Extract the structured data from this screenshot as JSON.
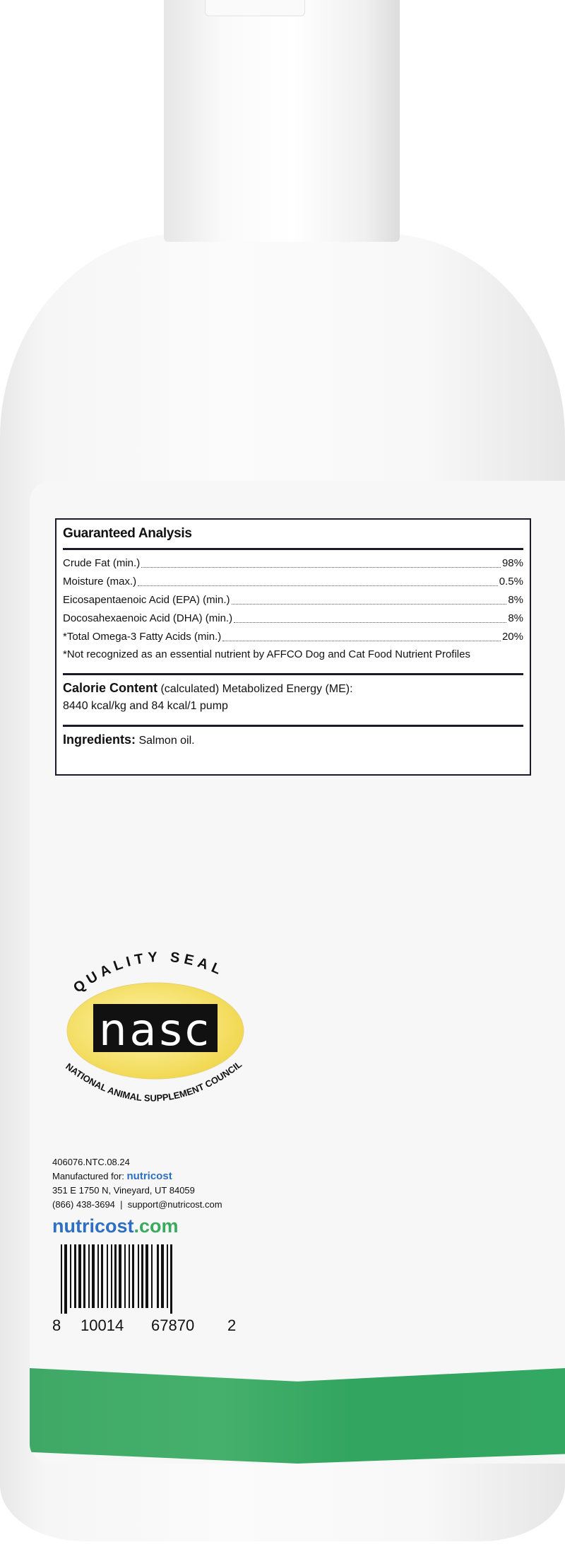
{
  "analysis": {
    "title": "Guaranteed Analysis",
    "rows": [
      {
        "label": "Crude Fat (min.)",
        "value": "98%"
      },
      {
        "label": "Moisture (max.)",
        "value": "0.5%"
      },
      {
        "label": "Eicosapentaenoic Acid (EPA) (min.)",
        "value": "8%"
      },
      {
        "label": "Docosahexaenoic Acid (DHA) (min.)",
        "value": "8%"
      },
      {
        "label": "*Total Omega-3 Fatty Acids (min.)",
        "value": "20%"
      }
    ],
    "footnote": "*Not recognized as an essential nutrient by AFFCO Dog and Cat Food Nutrient Profiles",
    "calorie_heading": "Calorie Content",
    "calorie_text": " (calculated) Metabolized Energy (ME):",
    "calorie_values": "8440 kcal/kg and 84 kcal/1 pump",
    "ingredients_heading": "Ingredients:",
    "ingredients_text": " Salmon oil."
  },
  "seal": {
    "top_text": "QUALITY SEAL",
    "logo": "nasc",
    "bottom_text": "NATIONAL ANIMAL SUPPLEMENT COUNCIL",
    "colors": {
      "oval": "#f3dc5a",
      "box": "#111111"
    }
  },
  "manufacturer": {
    "lot": "406076.NTC.08.24",
    "manufactured_for": "Manufactured for:",
    "brand": "nutricost",
    "address": "351 E 1750 N, Vineyard, UT 84059",
    "phone": "(866) 438-3694",
    "email": "support@nutricost.com",
    "site_name": "nutricost",
    "site_tld": ".com"
  },
  "barcode": {
    "digits": [
      "8",
      "10014",
      "67870",
      "2"
    ]
  },
  "colors": {
    "green_band": "#3aa863",
    "brand_blue": "#2e6fc1",
    "brand_green": "#3aaa5c"
  }
}
